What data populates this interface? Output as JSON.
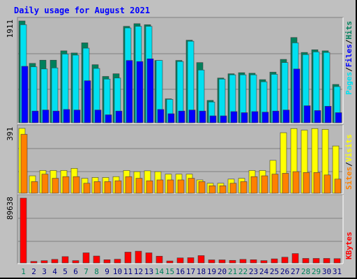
{
  "title": "Daily usage for August 2021",
  "colors": {
    "frame_bg": "#c0c0c0",
    "plot_bg": "#b8b8b8",
    "hits": "#00805c",
    "files": "#00e0f0",
    "pages": "#0000ff",
    "visits": "#ffff00",
    "sites": "#ff8000",
    "kbytes": "#ff0000",
    "weekday_label": "#000080",
    "weekend_label": "#00805c",
    "title": "#0000ff"
  },
  "chart_data": [
    {
      "type": "bar",
      "panel": "hits-files-pages",
      "ymax_label": "1911",
      "legend": [
        {
          "label": "Pages",
          "color": "#00e0f0"
        },
        {
          "label": "Files",
          "color": "#0000ff"
        },
        {
          "label": "Hits",
          "color": "#00805c"
        }
      ],
      "categories": [
        "1",
        "2",
        "3",
        "4",
        "5",
        "6",
        "7",
        "8",
        "9",
        "10",
        "11",
        "12",
        "13",
        "14",
        "15",
        "16",
        "17",
        "18",
        "19",
        "20",
        "21",
        "22",
        "23",
        "24",
        "25",
        "26",
        "27",
        "28",
        "29",
        "30",
        "31"
      ],
      "series": [
        {
          "name": "Hits",
          "values": [
            1911,
            1115,
            1175,
            1175,
            1350,
            1310,
            1500,
            1090,
            870,
            920,
            1810,
            1860,
            1840,
            1170,
            450,
            1170,
            1550,
            1130,
            420,
            840,
            920,
            940,
            930,
            810,
            950,
            1190,
            1600,
            1320,
            1370,
            1350,
            720
          ]
        },
        {
          "name": "Files",
          "values": [
            1840,
            1050,
            1010,
            1030,
            1290,
            1270,
            1400,
            1020,
            820,
            840,
            1780,
            1810,
            1810,
            1170,
            440,
            1150,
            1530,
            990,
            390,
            820,
            900,
            900,
            900,
            770,
            910,
            1130,
            1500,
            1280,
            1330,
            1320,
            680
          ]
        },
        {
          "name": "Pages",
          "values": [
            1060,
            220,
            240,
            220,
            250,
            240,
            790,
            240,
            150,
            220,
            1170,
            1150,
            1200,
            250,
            170,
            220,
            240,
            220,
            130,
            130,
            210,
            190,
            210,
            200,
            220,
            240,
            1010,
            320,
            230,
            310,
            190
          ]
        }
      ],
      "ylim": [
        0,
        1911
      ]
    },
    {
      "type": "bar",
      "panel": "visits-sites",
      "ymax_label": "391",
      "legend": [
        {
          "label": "Sites",
          "color": "#ff8000"
        },
        {
          "label": "Visits",
          "color": "#ffff00"
        }
      ],
      "categories": [
        "1",
        "2",
        "3",
        "4",
        "5",
        "6",
        "7",
        "8",
        "9",
        "10",
        "11",
        "12",
        "13",
        "14",
        "15",
        "16",
        "17",
        "18",
        "19",
        "20",
        "21",
        "22",
        "23",
        "24",
        "25",
        "26",
        "27",
        "28",
        "29",
        "30",
        "31"
      ],
      "series": [
        {
          "name": "Visits",
          "values": [
            391,
            105,
            137,
            137,
            137,
            150,
            90,
            95,
            95,
            100,
            137,
            130,
            135,
            130,
            115,
            115,
            115,
            80,
            60,
            60,
            85,
            90,
            137,
            137,
            198,
            365,
            390,
            380,
            390,
            385,
            285
          ]
        },
        {
          "name": "Sites",
          "values": [
            355,
            70,
            115,
            90,
            100,
            100,
            60,
            70,
            70,
            75,
            100,
            90,
            75,
            80,
            80,
            80,
            90,
            70,
            45,
            45,
            60,
            70,
            100,
            105,
            115,
            120,
            130,
            125,
            125,
            110,
            85
          ]
        }
      ],
      "ylim": [
        0,
        391
      ]
    },
    {
      "type": "bar",
      "panel": "kbytes",
      "ymax_label": "89638",
      "legend": [
        {
          "label": "KBytes",
          "color": "#ff0000"
        }
      ],
      "categories": [
        "1",
        "2",
        "3",
        "4",
        "5",
        "6",
        "7",
        "8",
        "9",
        "10",
        "11",
        "12",
        "13",
        "14",
        "15",
        "16",
        "17",
        "18",
        "19",
        "20",
        "21",
        "22",
        "23",
        "24",
        "25",
        "26",
        "27",
        "28",
        "29",
        "30",
        "31"
      ],
      "series": [
        {
          "name": "KBytes",
          "values": [
            89638,
            2200,
            3200,
            5000,
            8800,
            3300,
            14000,
            9600,
            4500,
            5200,
            15000,
            16300,
            14000,
            9400,
            2800,
            7000,
            7300,
            10200,
            4300,
            4300,
            3600,
            5000,
            4500,
            3300,
            5700,
            8000,
            13000,
            6300,
            6300,
            6300,
            6000
          ]
        }
      ],
      "ylim": [
        0,
        89638
      ]
    }
  ],
  "x_labels": [
    {
      "text": "1",
      "weekend": true
    },
    {
      "text": "2",
      "weekend": false
    },
    {
      "text": "3",
      "weekend": false
    },
    {
      "text": "4",
      "weekend": false
    },
    {
      "text": "5",
      "weekend": false
    },
    {
      "text": "6",
      "weekend": false
    },
    {
      "text": "7",
      "weekend": true
    },
    {
      "text": "8",
      "weekend": true
    },
    {
      "text": "9",
      "weekend": false
    },
    {
      "text": "10",
      "weekend": false
    },
    {
      "text": "11",
      "weekend": false
    },
    {
      "text": "12",
      "weekend": false
    },
    {
      "text": "13",
      "weekend": false
    },
    {
      "text": "14",
      "weekend": true
    },
    {
      "text": "15",
      "weekend": true
    },
    {
      "text": "16",
      "weekend": false
    },
    {
      "text": "17",
      "weekend": false
    },
    {
      "text": "18",
      "weekend": false
    },
    {
      "text": "19",
      "weekend": false
    },
    {
      "text": "20",
      "weekend": false
    },
    {
      "text": "21",
      "weekend": true
    },
    {
      "text": "22",
      "weekend": true
    },
    {
      "text": "23",
      "weekend": false
    },
    {
      "text": "24",
      "weekend": false
    },
    {
      "text": "25",
      "weekend": false
    },
    {
      "text": "26",
      "weekend": false
    },
    {
      "text": "27",
      "weekend": false
    },
    {
      "text": "28",
      "weekend": true
    },
    {
      "text": "29",
      "weekend": true
    },
    {
      "text": "30",
      "weekend": false
    },
    {
      "text": "31",
      "weekend": false
    }
  ]
}
